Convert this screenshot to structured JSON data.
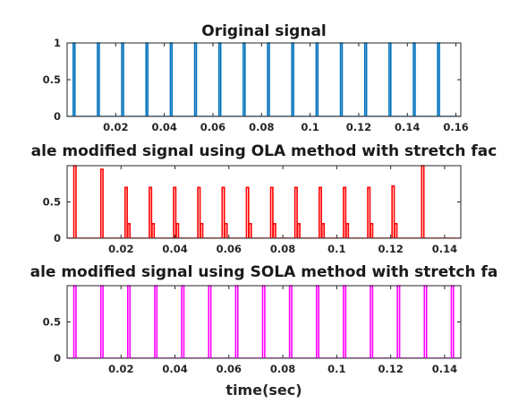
{
  "figure": {
    "xlabel": "time(sec)"
  },
  "chart_data": [
    {
      "type": "line",
      "title": "Original signal",
      "xlabel": "",
      "ylabel": "",
      "xlim": [
        0,
        0.162
      ],
      "ylim": [
        0,
        1
      ],
      "xticks": [
        0.02,
        0.04,
        0.06,
        0.08,
        0.1,
        0.12,
        0.14,
        0.16
      ],
      "xtick_labels": [
        "0.02",
        "0.04",
        "0.06",
        "0.08",
        "0.1",
        "0.12",
        "0.14",
        "0.16"
      ],
      "yticks": [
        0,
        0.5,
        1
      ],
      "ytick_labels": [
        "0",
        "0.5",
        "1"
      ],
      "grid": false,
      "series": [
        {
          "color": "#0072BD",
          "pulse_times": [
            0.0025,
            0.0125,
            0.0225,
            0.0325,
            0.0425,
            0.0525,
            0.0625,
            0.0725,
            0.0825,
            0.0925,
            0.1025,
            0.1125,
            0.1225,
            0.1325,
            0.1425,
            0.1525
          ],
          "pulse_heights": [
            1,
            1,
            1,
            1,
            1,
            1,
            1,
            1,
            1,
            1,
            1,
            1,
            1,
            1,
            1,
            1
          ],
          "pulse_width": 0.0007
        }
      ]
    },
    {
      "type": "line",
      "title": "ale modified signal using OLA method with stretch fac",
      "xlabel": "",
      "ylabel": "",
      "xlim": [
        0,
        0.146
      ],
      "ylim": [
        0,
        1
      ],
      "xticks": [
        0.02,
        0.04,
        0.06,
        0.08,
        0.1,
        0.12,
        0.14
      ],
      "xtick_labels": [
        "0.02",
        "0.04",
        "0.06",
        "0.08",
        "0.1",
        "0.12",
        "0.14"
      ],
      "yticks": [
        0,
        0.5
      ],
      "ytick_labels": [
        "0",
        "0.5"
      ],
      "grid": false,
      "series": [
        {
          "color": "#FF0000",
          "pulse_times": [
            0.0025,
            0.0125,
            0.0215,
            0.0305,
            0.0395,
            0.0485,
            0.0575,
            0.0665,
            0.0755,
            0.0845,
            0.0935,
            0.1025,
            0.1115,
            0.1205,
            0.1315
          ],
          "pulse_heights": [
            1.0,
            0.95,
            0.7,
            0.7,
            0.7,
            0.7,
            0.7,
            0.7,
            0.7,
            0.7,
            0.7,
            0.7,
            0.7,
            0.72,
            1.0
          ],
          "echo_times": [
            0.0225,
            0.0315,
            0.0405,
            0.0495,
            0.0585,
            0.0675,
            0.0765,
            0.0855,
            0.0945,
            0.1035,
            0.1125,
            0.1215
          ],
          "echo_height": 0.2,
          "pulse_width": 0.0008
        }
      ]
    },
    {
      "type": "line",
      "title": "ale modified signal using SOLA method with stretch fa",
      "xlabel": "time(sec)",
      "ylabel": "",
      "xlim": [
        0,
        0.146
      ],
      "ylim": [
        0,
        1
      ],
      "xticks": [
        0.02,
        0.04,
        0.06,
        0.08,
        0.1,
        0.12,
        0.14
      ],
      "xtick_labels": [
        "0.02",
        "0.04",
        "0.06",
        "0.08",
        "0.1",
        "0.12",
        "0.14"
      ],
      "yticks": [
        0,
        0.5
      ],
      "ytick_labels": [
        "0",
        "0.5"
      ],
      "grid": false,
      "series": [
        {
          "color": "#FF00FF",
          "pulse_times": [
            0.0025,
            0.0125,
            0.0225,
            0.0325,
            0.0425,
            0.0525,
            0.0625,
            0.0725,
            0.0825,
            0.0925,
            0.1025,
            0.1125,
            0.1225,
            0.1325,
            0.1425
          ],
          "pulse_heights": [
            1,
            1,
            1,
            1,
            1,
            1,
            1,
            1,
            1,
            1,
            1,
            1,
            1,
            1,
            1
          ],
          "pulse_width": 0.0008
        }
      ]
    }
  ]
}
